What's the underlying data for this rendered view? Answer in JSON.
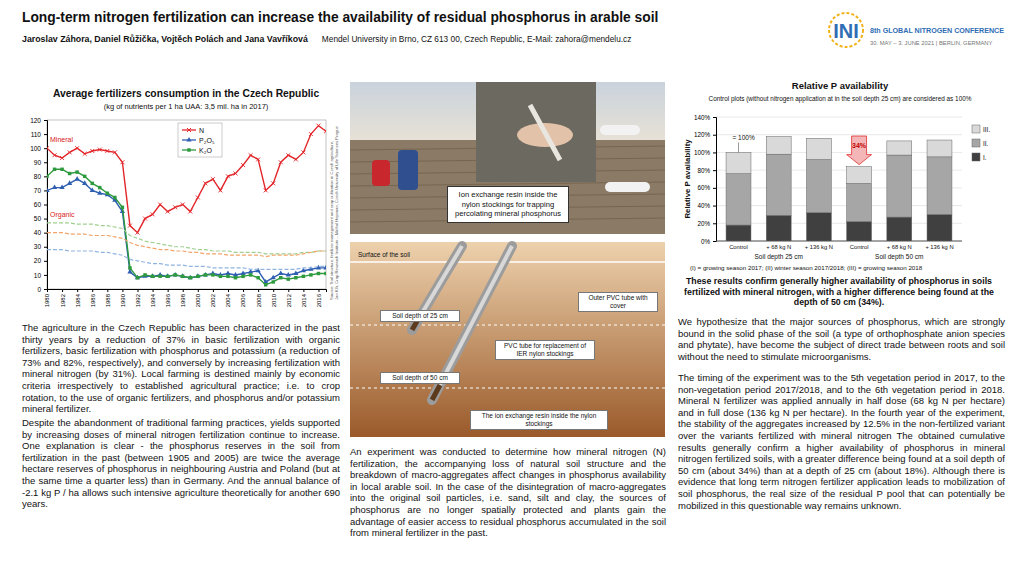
{
  "header": {
    "title": "Long-term nitrogen fertilization can increase the availability of residual phosphorus in arable soil",
    "authors": "Jaroslav Záhora, Daniel Růžička, Vojtěch Polách and Jana Vavříková",
    "affiliation": "Mendel University in Brno, CZ 613 00, Czech Republic, E-Mail: zahora@mendelu.cz"
  },
  "conference": {
    "logo": "INI",
    "name": "8th GLOBAL NITROGEN CONFERENCE",
    "dates": "30. MAY – 3. JUNE 2021 | BERLIN, GERMANY"
  },
  "chart_data": [
    {
      "type": "line",
      "title": "Average fertilizers consumption in the Czech Republic",
      "subtitle": "(kg of nutrients per 1 ha UAA: 3,5 mil. ha in 2017)",
      "x": [
        1980,
        1981,
        1982,
        1983,
        1984,
        1985,
        1986,
        1987,
        1988,
        1989,
        1990,
        1991,
        1992,
        1993,
        1994,
        1995,
        1996,
        1997,
        1998,
        1999,
        2000,
        2001,
        2002,
        2003,
        2004,
        2005,
        2006,
        2007,
        2008,
        2009,
        2010,
        2011,
        2012,
        2013,
        2014,
        2015,
        2016,
        2017
      ],
      "xlim": [
        1980,
        2017
      ],
      "xticks": [
        1980,
        1982,
        1984,
        1986,
        1988,
        1990,
        1992,
        1994,
        1996,
        1998,
        2000,
        2002,
        2004,
        2006,
        2008,
        2010,
        2012,
        2014,
        2016
      ],
      "ylim": [
        0,
        120
      ],
      "yticks": [
        0,
        10,
        20,
        30,
        40,
        50,
        60,
        70,
        80,
        90,
        100,
        110,
        120
      ],
      "grid": false,
      "legend": "top",
      "annotations": [
        "Mineral",
        "Organic"
      ],
      "source": [
        "Source: Soil structure, fertilizer management and crop cultivation in Czech agriculture,",
        "Jan Klír, Crop Research Institute – Michal Hejcman, Czech University of Life Sciences Prague"
      ],
      "series": [
        {
          "name": "N",
          "color": "#e3262a",
          "marker": "x",
          "line_style": "solid",
          "values": [
            100,
            95,
            93,
            97,
            100,
            96,
            98,
            99,
            98,
            97,
            90,
            45,
            40,
            50,
            53,
            60,
            55,
            58,
            60,
            55,
            65,
            75,
            78,
            70,
            80,
            82,
            88,
            95,
            92,
            70,
            75,
            90,
            95,
            92,
            97,
            110,
            116,
            112
          ]
        },
        {
          "name": "P₂O₅",
          "color": "#2e5fb0",
          "marker": "triangle",
          "line_style": "solid",
          "values": [
            70,
            72,
            72,
            75,
            78,
            75,
            70,
            68,
            67,
            63,
            55,
            12,
            8,
            9,
            9,
            10,
            9,
            10,
            9,
            8,
            9,
            10,
            11,
            10,
            11,
            10,
            11,
            12,
            13,
            5,
            8,
            11,
            10,
            11,
            13,
            14,
            15,
            15
          ]
        },
        {
          "name": "K₂O",
          "color": "#2e9a3e",
          "marker": "square",
          "line_style": "solid",
          "values": [
            80,
            85,
            85,
            82,
            83,
            80,
            75,
            72,
            68,
            65,
            58,
            15,
            8,
            10,
            9,
            9,
            9,
            10,
            9,
            8,
            9,
            10,
            10,
            9,
            9,
            8,
            9,
            10,
            8,
            3,
            5,
            8,
            7,
            8,
            9,
            10,
            11,
            11
          ]
        },
        {
          "color": "#9fcf8f",
          "line_style": "dashed",
          "values": [
            47,
            47,
            47,
            47,
            46,
            46,
            46,
            45,
            45,
            44,
            43,
            38,
            36,
            34,
            33,
            32,
            31,
            30,
            30,
            29,
            28,
            28,
            27,
            27,
            27,
            26,
            26,
            26,
            26,
            25,
            25,
            25,
            25,
            25,
            26,
            26,
            27,
            27
          ]
        },
        {
          "color": "#f2a56a",
          "line_style": "dashed",
          "values": [
            40,
            40,
            40,
            39,
            39,
            39,
            38,
            38,
            38,
            37,
            36,
            33,
            31,
            30,
            29,
            28,
            28,
            27,
            27,
            26,
            26,
            25,
            25,
            25,
            24,
            24,
            24,
            24,
            24,
            23,
            24,
            24,
            24,
            24,
            25,
            26,
            27,
            27
          ]
        },
        {
          "color": "#8fb3e0",
          "line_style": "dashed",
          "values": [
            28,
            28,
            28,
            27,
            27,
            27,
            27,
            26,
            26,
            25,
            24,
            21,
            20,
            19,
            18,
            18,
            17,
            17,
            17,
            16,
            16,
            16,
            15,
            15,
            15,
            15,
            15,
            14,
            14,
            14,
            14,
            14,
            14,
            14,
            15,
            15,
            16,
            16
          ]
        }
      ]
    },
    {
      "type": "bar",
      "stacked": true,
      "title": "Relative P availability",
      "subtitle": "Control plots (without nitrogen application at in the soil depth 25 cm) are considered as 100%",
      "y_label": "Relative P availability",
      "categories": [
        "Control",
        "+ 68 kg N",
        "+ 136 kg N",
        "Control",
        "+ 68 kg N",
        "+ 136 kg N"
      ],
      "groups": [
        "Soil depth 25 cm",
        "Soil depth 50 cm"
      ],
      "ylim": [
        0,
        140
      ],
      "yticks": [
        {
          "value": 0,
          "label": "0%"
        },
        {
          "value": 20,
          "label": "20%"
        },
        {
          "value": 40,
          "label": "40%"
        },
        {
          "value": 60,
          "label": "60%"
        },
        {
          "value": 80,
          "label": "80%"
        },
        {
          "value": 100,
          "label": "100%"
        },
        {
          "value": 120,
          "label": "120%"
        },
        {
          "value": 140,
          "label": "140%"
        }
      ],
      "grid": true,
      "legend": "right",
      "series": [
        {
          "name": "I.",
          "color": "#404040",
          "values": [
            18,
            29,
            32,
            22,
            27,
            30
          ]
        },
        {
          "name": "II.",
          "color": "#a6a6a6",
          "values": [
            58,
            69,
            60,
            43,
            70,
            65
          ]
        },
        {
          "name": "III.",
          "color": "#d9d9d9",
          "values": [
            24,
            20,
            24,
            19,
            16,
            19
          ]
        }
      ],
      "annotations": [
        "= 100%",
        "34%"
      ],
      "footnote": "(I)     = growing season 2017;   (II) winter season 2017/2018;   (III) = growing season 2018",
      "caption": "These results confirm generally higher availability of phosphorus in soils fertilized with mineral nitrogen, with a higher difference being found at the depth of 50 cm (34%)."
    }
  ],
  "photo": {
    "caption": "Ion exchange resin inside the nylon stockings for trapping percolating mineral phosphorus"
  },
  "diagram": {
    "surface": "Surface of the soil",
    "depth_25": "Soil depth of 25 cm",
    "depth_50": "Soil depth of 50 cm",
    "outer_tube": "Outer PVC tube with cover",
    "inner_tube": "PVC tube for replacement of IER nylon stockings",
    "resin": "The ion exchange resin inside the nylon stockings"
  },
  "paragraphs": {
    "left": [
      "The agriculture in the Czech Republic has been characterized in the past thirty years by a reduction of 37% in basic fertilization with organic fertilizers, basic fertilization with phosphorus and potassium (a reduction of 73% and 82%, respectively), and conversely by increasing fertilization with mineral nitrogen (by 31%). Local farming is destined mainly by economic criteria irrespectively to established agricultural practice; i.e. to crop rotation, to the use of organic fertilizers, and phosphorus and/or potassium mineral fertilizer.",
      "Despite the abandonment of traditional farming practices, yields supported by increasing doses of mineral nitrogen fertilization continue to increase. One explanation is clear - the phosphorus reserves in the soil from fertilization in the past (between 1905 and 2005) are twice the average hectare reserves of phosphorus in neighbouring Austria and Poland (but at the same time a quarter less) than in Germany. And the annual balance of -2.1 kg P / ha allows such intensive agriculture theoretically for another 690 years."
    ],
    "middle": [
      "An experiment was conducted to determine how mineral nitrogen (N) fertilization, the accompanying loss of natural soil structure and the breakdown of macro-aggregates affect changes in phosphorus availability in local arable soil. In the case of the disintegration of macro-aggregates into the original soil particles, i.e. sand, silt and clay, the sources of phosphorus are no longer spatially protected and plants gain the advantage of easier access to residual phosphorus accumulated in the soil from mineral fertilizer in the past."
    ],
    "right": [
      "We hypothesize that the major sources of phosphorus, which are strongly bound in the solid phase of the soil (a type of orthophosphate anion species and phytate), have become the subject of direct trade between roots and soil without the need to stimulate microorganisms.",
      "The timing of the experiment was to the 5th vegetation period in 2017, to the non-vegetation period 2017/2018, and to the 6th vegetation period in 2018. Mineral N fertilizer was applied annually in half dose (68 kg N per hectare) and in full dose (136 kg N per hectare). In the fourth year of the experiment, the stability of the aggregates increased by 12.5% in the non-fertilized variant over the variants fertilized with mineral nitrogen The obtained cumulative results generally confirm a higher availability of phosphorus in mineral nitrogen fertilized soils, with a greater difference being found at a soil depth of 50 cm (about 34%) than at a depth of 25 cm (about 18%). Although there is evidence that long term nitrogen fertilizer application leads to mobilization of soil phosphorus, the real size of the residual P pool that can potentially be mobilized in this questionable way remains unknown."
    ]
  }
}
